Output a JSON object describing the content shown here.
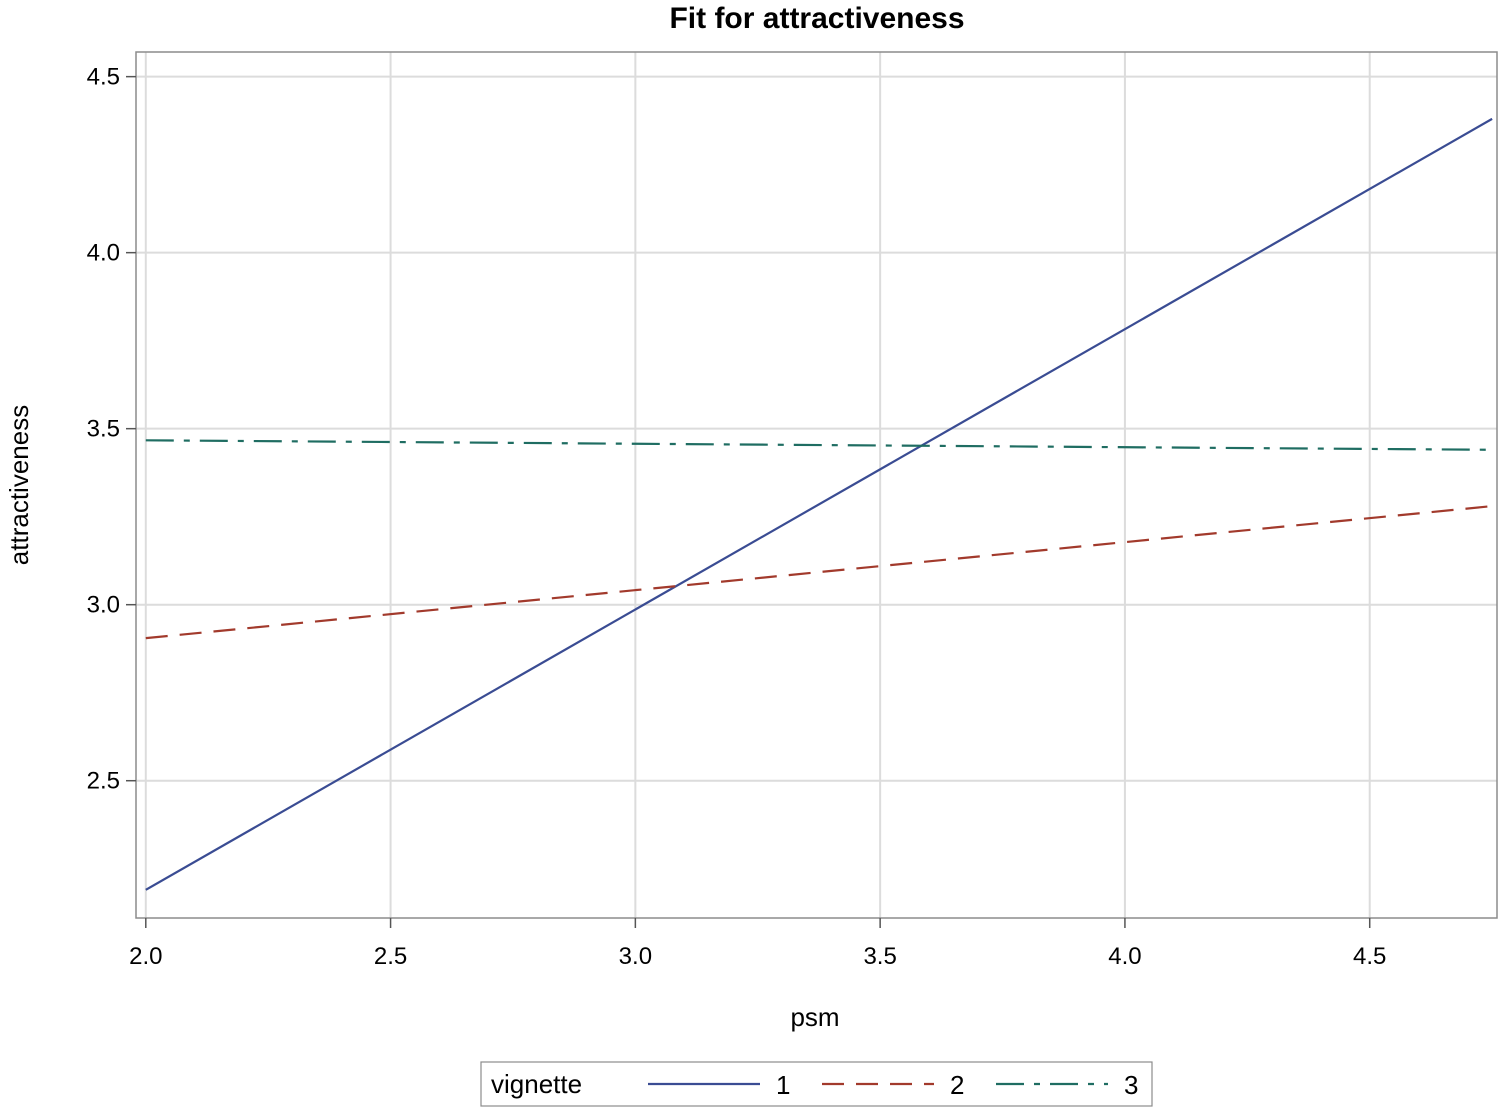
{
  "chart_data": {
    "type": "line",
    "title": "Fit for attractiveness",
    "xlabel": "psm",
    "ylabel": "attractiveness",
    "xlim": [
      1.98,
      4.76
    ],
    "ylim": [
      2.11,
      4.57
    ],
    "xticks": [
      "2.0",
      "2.5",
      "3.0",
      "3.5",
      "4.0",
      "4.5"
    ],
    "yticks": [
      "2.5",
      "3.0",
      "3.5",
      "4.0",
      "4.5"
    ],
    "grid": true,
    "legend": {
      "title": "vignette",
      "placement": "bottom"
    },
    "series": [
      {
        "name": "1",
        "color": "#3a4c93",
        "dash": "solid",
        "x": [
          2.0,
          4.75
        ],
        "y": [
          2.19,
          4.38
        ]
      },
      {
        "name": "2",
        "color": "#a23a2c",
        "dash": "dash",
        "x": [
          2.0,
          4.75
        ],
        "y": [
          2.905,
          3.28
        ]
      },
      {
        "name": "3",
        "color": "#1f6d62",
        "dash": "dashdot",
        "x": [
          2.0,
          4.75
        ],
        "y": [
          3.467,
          3.44
        ]
      }
    ]
  }
}
